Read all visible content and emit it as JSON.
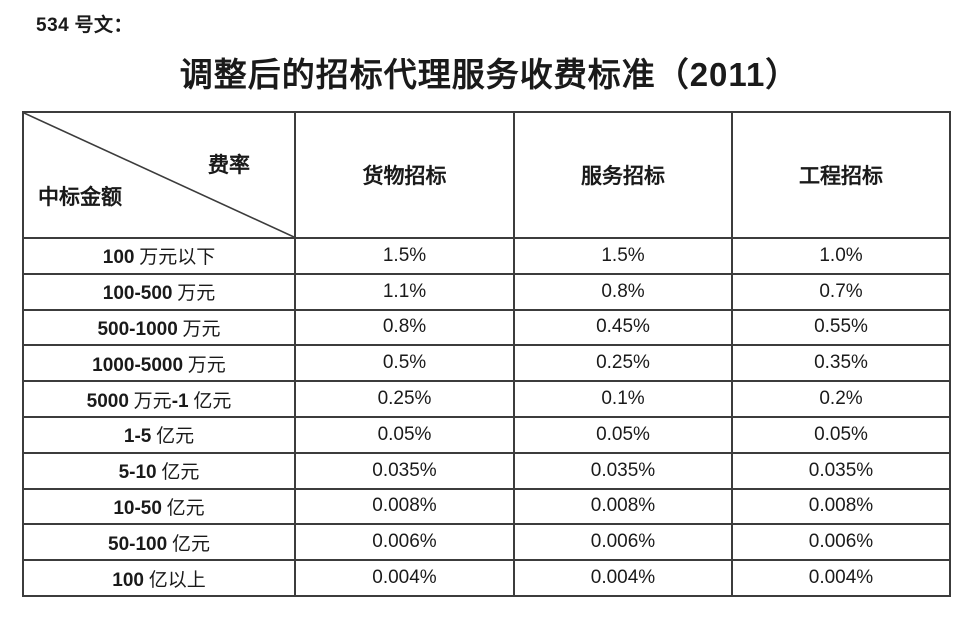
{
  "page": {
    "doc_number": "534 号文：",
    "title": "调整后的招标代理服务收费标准（2011）"
  },
  "table": {
    "corner": {
      "top_right": "费率",
      "bottom_left": "中标金额"
    },
    "columns": [
      "货物招标",
      "服务招标",
      "工程招标"
    ],
    "rows": [
      {
        "label": "100 万元以下",
        "values": [
          "1.5%",
          "1.5%",
          "1.0%"
        ]
      },
      {
        "label": "100-500 万元",
        "values": [
          "1.1%",
          "0.8%",
          "0.7%"
        ]
      },
      {
        "label": "500-1000 万元",
        "values": [
          "0.8%",
          "0.45%",
          "0.55%"
        ]
      },
      {
        "label": "1000-5000 万元",
        "values": [
          "0.5%",
          "0.25%",
          "0.35%"
        ]
      },
      {
        "label": "5000 万元-1 亿元",
        "values": [
          "0.25%",
          "0.1%",
          "0.2%"
        ]
      },
      {
        "label": "1-5 亿元",
        "values": [
          "0.05%",
          "0.05%",
          "0.05%"
        ]
      },
      {
        "label": "5-10 亿元",
        "values": [
          "0.035%",
          "0.035%",
          "0.035%"
        ]
      },
      {
        "label": "10-50 亿元",
        "values": [
          "0.008%",
          "0.008%",
          "0.008%"
        ]
      },
      {
        "label": "50-100 亿元",
        "values": [
          "0.006%",
          "0.006%",
          "0.006%"
        ]
      },
      {
        "label": "100 亿以上",
        "values": [
          "0.004%",
          "0.004%",
          "0.004%"
        ]
      }
    ]
  },
  "colors": {
    "text": "#1a1a1a",
    "border": "#3c3c3c",
    "background": "#ffffff"
  }
}
